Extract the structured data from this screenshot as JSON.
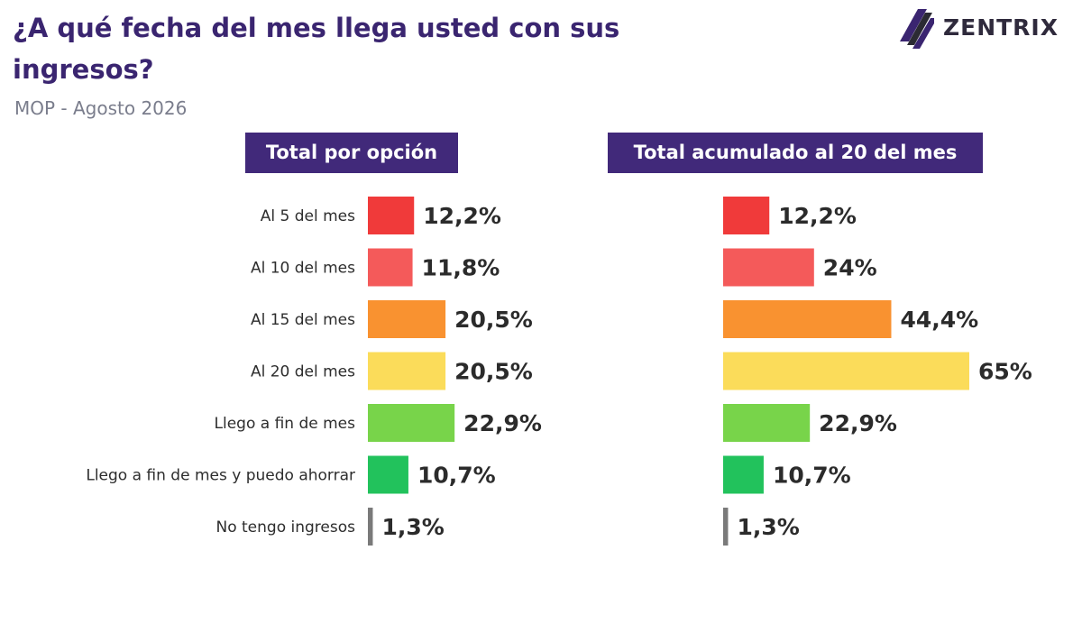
{
  "header": {
    "title": "¿A qué fecha del mes llega usted con sus ingresos?",
    "subtitle": "MOP - Agosto 2026",
    "brand": "ZENTRIX"
  },
  "chart_data": [
    {
      "type": "bar",
      "orientation": "horizontal",
      "title": "Total por opción",
      "categories": [
        "Al 5 del mes",
        "Al 10 del mes",
        "Al 15 del mes",
        "Al 20 del mes",
        "Llego a fin de mes",
        "Llego a fin de mes y puedo ahorrar",
        "No tengo ingresos"
      ],
      "values": [
        12.2,
        11.8,
        20.5,
        20.5,
        22.9,
        10.7,
        1.3
      ],
      "value_labels": [
        "12,2%",
        "11,8%",
        "20,5%",
        "20,5%",
        "22,9%",
        "10,7%",
        "1,3%"
      ],
      "colors": [
        "#f03a3a",
        "#f45a5a",
        "#f99230",
        "#fbdc5a",
        "#78d44a",
        "#22c25c",
        "#7a7a7a"
      ],
      "xlim": [
        0,
        100
      ],
      "grid": false,
      "legend": "none"
    },
    {
      "type": "bar",
      "orientation": "horizontal",
      "title": "Total acumulado al 20 del mes",
      "categories": [
        "Al 5 del mes",
        "Al 10 del mes",
        "Al 15 del mes",
        "Al 20 del mes",
        "Llego a fin de mes",
        "Llego a fin de mes y puedo ahorrar",
        "No tengo ingresos"
      ],
      "values": [
        12.2,
        24,
        44.4,
        65,
        22.9,
        10.7,
        1.3
      ],
      "value_labels": [
        "12,2%",
        "24%",
        "44,4%",
        "65%",
        "22,9%",
        "10,7%",
        "1,3%"
      ],
      "colors": [
        "#f03a3a",
        "#f45a5a",
        "#f99230",
        "#fbdc5a",
        "#78d44a",
        "#22c25c",
        "#7a7a7a"
      ],
      "xlim": [
        0,
        100
      ],
      "grid": false,
      "legend": "none"
    }
  ]
}
